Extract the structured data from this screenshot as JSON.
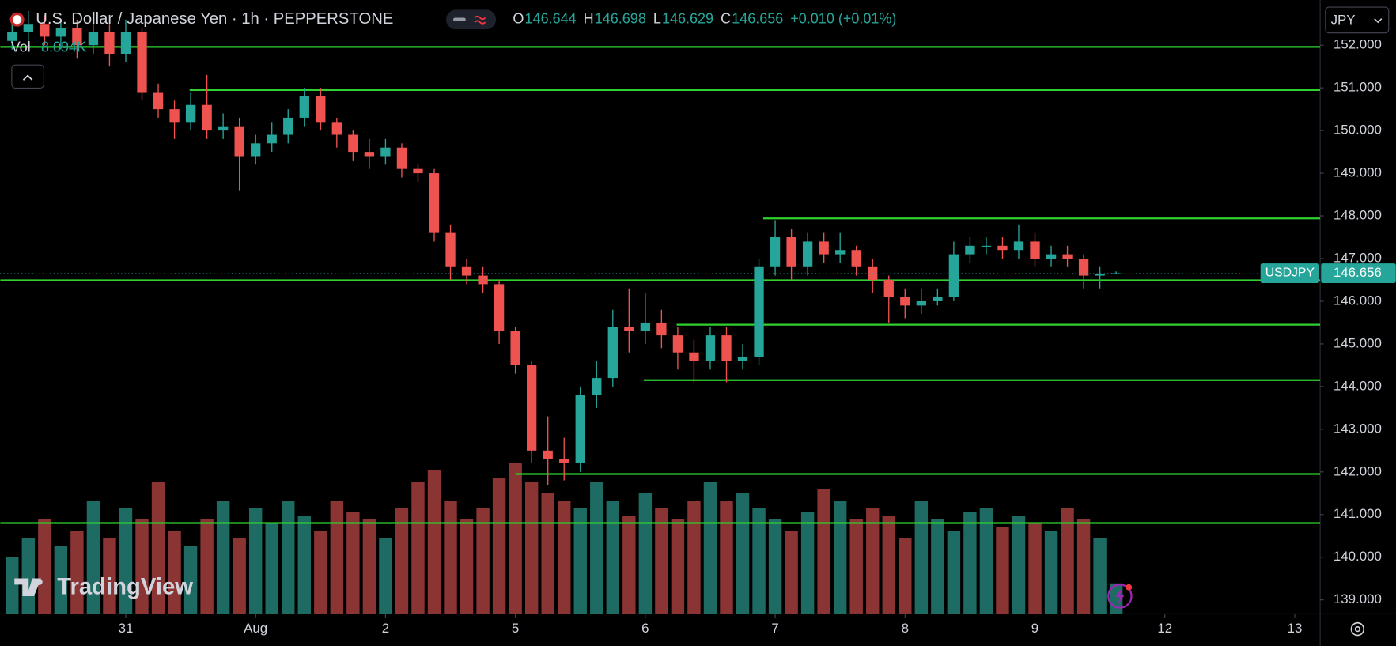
{
  "chart_data": {
    "type": "candlestick",
    "title": "U.S. Dollar / Japanese Yen · 1h · PEPPERSTONE",
    "ohlc": [
      {
        "key": "O",
        "value": "146.644"
      },
      {
        "key": "H",
        "value": "146.698"
      },
      {
        "key": "L",
        "value": "146.629"
      },
      {
        "key": "C",
        "value": "146.656"
      }
    ],
    "change": "+0.010 (+0.01%)",
    "volume_label": "Vol",
    "volume_value_label": "8.094K",
    "currency": "JPY",
    "watermark": "TradingView",
    "last_price": {
      "symbol": "USDJPY",
      "value": 146.656
    },
    "x": [
      -21,
      -18,
      -15,
      -12,
      -9,
      -6,
      -3,
      0,
      3,
      6,
      9,
      12,
      15,
      18,
      21,
      24,
      27,
      30,
      33,
      36,
      39,
      42,
      45,
      48,
      51,
      54,
      57,
      60,
      63,
      66,
      69,
      72,
      75,
      78,
      81,
      84,
      87,
      90,
      93,
      96,
      99,
      102,
      105,
      108,
      111,
      114,
      117,
      120,
      123,
      126,
      129,
      132,
      135,
      138,
      141,
      144,
      147,
      150,
      153,
      156,
      159,
      162,
      165,
      168,
      171,
      174,
      177,
      180,
      183
    ],
    "open": [
      152.1,
      152.3,
      152.5,
      152.2,
      152.4,
      152.0,
      152.3,
      151.8,
      152.3,
      150.9,
      150.5,
      150.2,
      150.6,
      150.0,
      150.1,
      149.4,
      149.7,
      149.9,
      150.3,
      150.8,
      150.2,
      149.9,
      149.5,
      149.4,
      149.6,
      149.1,
      149.0,
      147.6,
      146.8,
      146.6,
      146.4,
      145.3,
      144.5,
      142.5,
      142.3,
      142.2,
      143.8,
      144.2,
      145.4,
      145.3,
      145.5,
      145.2,
      144.8,
      144.6,
      145.2,
      144.6,
      144.7,
      146.8,
      147.5,
      146.8,
      147.4,
      147.1,
      147.2,
      146.8,
      146.5,
      146.1,
      145.9,
      146.0,
      146.1,
      147.1,
      147.3,
      147.3,
      147.2,
      147.4,
      147.0,
      147.1,
      147.0,
      146.6,
      146.644
    ],
    "high": [
      152.6,
      152.8,
      152.7,
      152.6,
      152.6,
      152.5,
      152.5,
      152.6,
      152.4,
      151.1,
      150.7,
      150.9,
      151.3,
      150.4,
      150.3,
      149.9,
      150.2,
      150.5,
      151.0,
      151.0,
      150.3,
      150.0,
      149.8,
      149.8,
      149.7,
      149.2,
      149.1,
      147.8,
      147.0,
      146.8,
      146.5,
      145.4,
      144.6,
      143.3,
      142.8,
      144.0,
      144.6,
      145.8,
      146.3,
      146.2,
      145.8,
      145.4,
      145.1,
      145.4,
      145.4,
      145.0,
      147.0,
      147.9,
      147.7,
      147.6,
      147.6,
      147.6,
      147.3,
      147.0,
      146.6,
      146.3,
      146.3,
      146.3,
      147.4,
      147.5,
      147.5,
      147.5,
      147.8,
      147.6,
      147.3,
      147.3,
      147.1,
      146.8,
      146.698
    ],
    "low": [
      151.9,
      152.1,
      152.0,
      151.9,
      151.7,
      151.8,
      151.5,
      151.6,
      150.7,
      150.3,
      149.8,
      150.0,
      149.8,
      149.8,
      148.6,
      149.2,
      149.5,
      149.7,
      150.1,
      150.0,
      149.6,
      149.3,
      149.1,
      149.2,
      148.9,
      148.8,
      147.4,
      146.5,
      146.4,
      146.2,
      145.0,
      144.3,
      142.2,
      141.7,
      141.8,
      142.0,
      143.5,
      144.0,
      144.8,
      145.0,
      144.9,
      144.4,
      144.1,
      144.4,
      144.1,
      144.4,
      144.5,
      146.6,
      146.5,
      146.6,
      146.9,
      146.9,
      146.6,
      146.2,
      145.5,
      145.6,
      145.7,
      145.9,
      146.0,
      146.9,
      147.1,
      147.0,
      147.0,
      146.8,
      146.8,
      146.8,
      146.3,
      146.3,
      146.629
    ],
    "close": [
      152.3,
      152.5,
      152.2,
      152.4,
      152.0,
      152.3,
      151.8,
      152.3,
      150.9,
      150.5,
      150.2,
      150.6,
      150.0,
      150.1,
      149.4,
      149.7,
      149.9,
      150.3,
      150.8,
      150.2,
      149.9,
      149.5,
      149.4,
      149.6,
      149.1,
      149.0,
      147.6,
      146.8,
      146.6,
      146.4,
      145.3,
      144.5,
      142.5,
      142.3,
      142.2,
      143.8,
      144.2,
      145.4,
      145.3,
      145.5,
      145.2,
      144.8,
      144.6,
      145.2,
      144.6,
      144.7,
      146.8,
      147.5,
      146.8,
      147.4,
      147.1,
      147.2,
      146.8,
      146.5,
      146.1,
      145.9,
      146.0,
      146.1,
      147.1,
      147.3,
      147.3,
      147.2,
      147.4,
      147.0,
      147.1,
      147.0,
      146.6,
      146.644,
      146.656
    ],
    "volume": [
      15,
      20,
      25,
      18,
      22,
      30,
      20,
      28,
      25,
      35,
      22,
      18,
      25,
      30,
      20,
      28,
      24,
      30,
      26,
      22,
      30,
      27,
      25,
      20,
      28,
      35,
      38,
      30,
      25,
      28,
      36,
      40,
      35,
      32,
      30,
      28,
      35,
      30,
      26,
      32,
      28,
      25,
      30,
      35,
      30,
      32,
      28,
      25,
      22,
      27,
      33,
      30,
      25,
      28,
      26,
      20,
      30,
      25,
      22,
      27,
      28,
      23,
      26,
      24,
      22,
      28,
      25,
      20,
      8.094
    ],
    "up_color": "#26a69a",
    "down_color": "#ef5350",
    "up_volume_color": "#1e6b63",
    "down_volume_color": "#8a3434",
    "levels": [
      {
        "price": 151.96,
        "from": -23.2
      },
      {
        "price": 150.95,
        "from": 11.8
      },
      {
        "price": 147.94,
        "from": 117.8
      },
      {
        "price": 146.49,
        "from": -23.2
      },
      {
        "price": 145.45,
        "from": 101.8
      },
      {
        "price": 144.15,
        "from": 95.7
      },
      {
        "price": 141.95,
        "from": 72
      },
      {
        "price": 140.8,
        "from": -23.2
      }
    ],
    "level_color": "#2fd12f",
    "xlim": [
      -23.2,
      220.7
    ],
    "ylim": [
      138.67,
      153.06
    ],
    "xticks": [
      {
        "value": 0,
        "label": "31"
      },
      {
        "value": 24,
        "label": "Aug"
      },
      {
        "value": 48,
        "label": "2"
      },
      {
        "value": 72,
        "label": "5"
      },
      {
        "value": 96,
        "label": "6"
      },
      {
        "value": 120,
        "label": "7"
      },
      {
        "value": 144,
        "label": "8"
      },
      {
        "value": 168,
        "label": "9"
      },
      {
        "value": 192,
        "label": "12"
      },
      {
        "value": 216,
        "label": "13"
      }
    ],
    "yticks": [
      {
        "value": 152,
        "label": "152.000"
      },
      {
        "value": 151,
        "label": "151.000"
      },
      {
        "value": 150,
        "label": "150.000"
      },
      {
        "value": 149,
        "label": "149.000"
      },
      {
        "value": 148,
        "label": "148.000"
      },
      {
        "value": 147,
        "label": "147.000"
      },
      {
        "value": 146,
        "label": "146.000"
      },
      {
        "value": 145,
        "label": "145.000"
      },
      {
        "value": 144,
        "label": "144.000"
      },
      {
        "value": 143,
        "label": "143.000"
      },
      {
        "value": 142,
        "label": "142.000"
      },
      {
        "value": 141,
        "label": "141.000"
      },
      {
        "value": 140,
        "label": "140.000"
      },
      {
        "value": 139,
        "label": "139.000"
      }
    ]
  }
}
